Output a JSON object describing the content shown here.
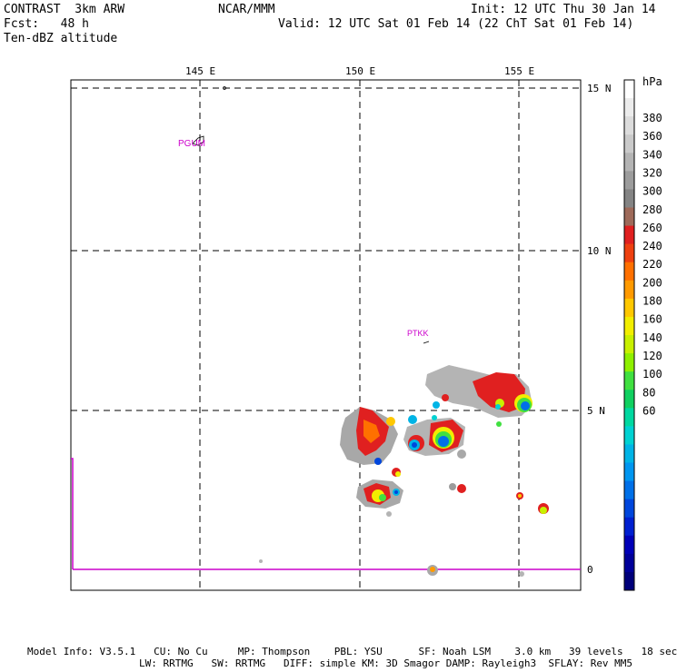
{
  "header": {
    "model": "CONTRAST  3km ARW",
    "org": "NCAR/MMM",
    "init": "Init: 12 UTC Thu 30 Jan 14",
    "fcst": "Fcst:   48 h",
    "valid": "Valid: 12 UTC Sat 01 Feb 14 (22 ChT Sat 01 Feb 14)",
    "field": "Ten-dBZ altitude"
  },
  "map": {
    "lon_labels": [
      "145 E",
      "150 E",
      "155 E"
    ],
    "lat_labels": [
      "15 N",
      "10 N",
      "5 N",
      "0"
    ],
    "stations": [
      {
        "id": "PGUM",
        "lon": 144.8,
        "lat": 13.5
      },
      {
        "id": "PTKK",
        "lon": 151.8,
        "lat": 7.45
      }
    ],
    "colors": {
      "station": "#cc00cc",
      "equator": "#cc00cc"
    }
  },
  "colorbar": {
    "unit": "hPa",
    "labels": [
      "380",
      "360",
      "340",
      "320",
      "300",
      "280",
      "260",
      "240",
      "220",
      "200",
      "180",
      "160",
      "140",
      "120",
      "100",
      "80",
      "60"
    ],
    "colors": [
      "#ffffff",
      "#ececec",
      "#dcdcdc",
      "#cacaca",
      "#b4b4b4",
      "#9c9c9c",
      "#848484",
      "#9e6a5a",
      "#e02020",
      "#ee4010",
      "#ff7000",
      "#ff9a00",
      "#ffc800",
      "#f2ee00",
      "#c8f000",
      "#8ef000",
      "#40e040",
      "#10d060",
      "#00d8a0",
      "#00d2d2",
      "#00b4e6",
      "#0096f0",
      "#0070e8",
      "#0046dc",
      "#0020d0",
      "#0000b8",
      "#00009a",
      "#00007a"
    ]
  },
  "footer": {
    "line1": "Model Info: V3.5.1   CU: No Cu     MP: Thompson    PBL: YSU      SF: Noah LSM    3.0 km   39 levels   18 sec",
    "line2": "LW: RRTMG   SW: RRTMG   DIFF: simple KM: 3D Smagor DAMP: Rayleigh3  SFLAY: Rev MM5"
  }
}
